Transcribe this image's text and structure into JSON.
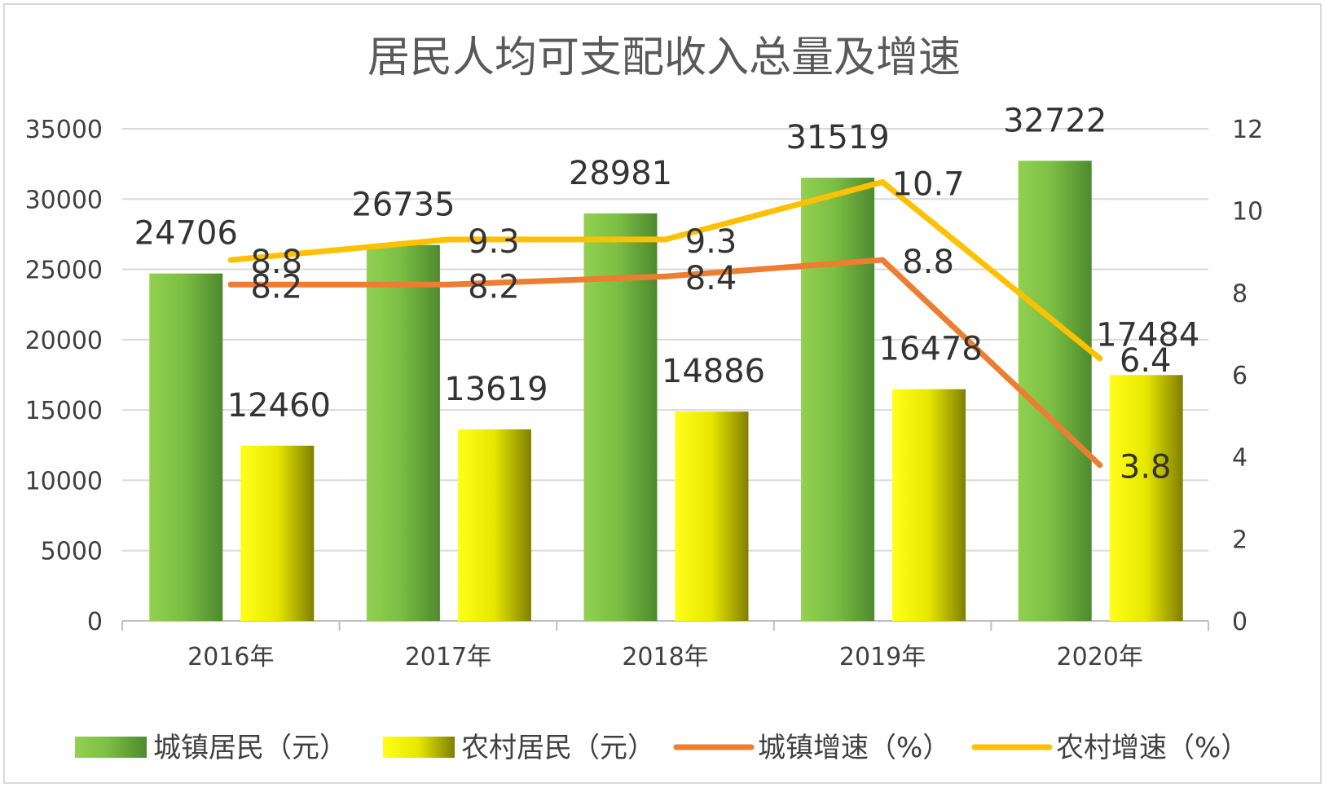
{
  "chart_data": {
    "type": "bar",
    "title": "居民人均可支配收入总量及增速",
    "categories": [
      "2016年",
      "2017年",
      "2018年",
      "2019年",
      "2020年"
    ],
    "series": [
      {
        "name": "城镇居民（元）",
        "kind": "bar",
        "axis": "left",
        "values": [
          24706,
          26735,
          28981,
          31519,
          32722
        ],
        "color_light": "#92d050",
        "color_dark": "#4e8a2e"
      },
      {
        "name": "农村居民（元）",
        "kind": "bar",
        "axis": "left",
        "values": [
          12460,
          13619,
          14886,
          16478,
          17484
        ],
        "color_light": "#ffff00",
        "color_dark": "#7f7f00"
      },
      {
        "name": "城镇增速（%）",
        "kind": "line",
        "axis": "right",
        "values": [
          8.2,
          8.2,
          8.4,
          8.8,
          3.8
        ],
        "color": "#ed7d31",
        "label_color": "#333333"
      },
      {
        "name": "农村增速（%）",
        "kind": "line",
        "axis": "right",
        "values": [
          8.8,
          9.3,
          9.3,
          10.7,
          6.4
        ],
        "color": "#ffc000",
        "label_color": "#375623"
      }
    ],
    "y_left": {
      "min": 0,
      "max": 35000,
      "ticks": [
        0,
        5000,
        10000,
        15000,
        20000,
        25000,
        30000,
        35000
      ]
    },
    "y_right": {
      "min": 0,
      "max": 12,
      "ticks": [
        0,
        2,
        4,
        6,
        8,
        10,
        12
      ]
    },
    "grid": true,
    "legend": "bottom"
  }
}
